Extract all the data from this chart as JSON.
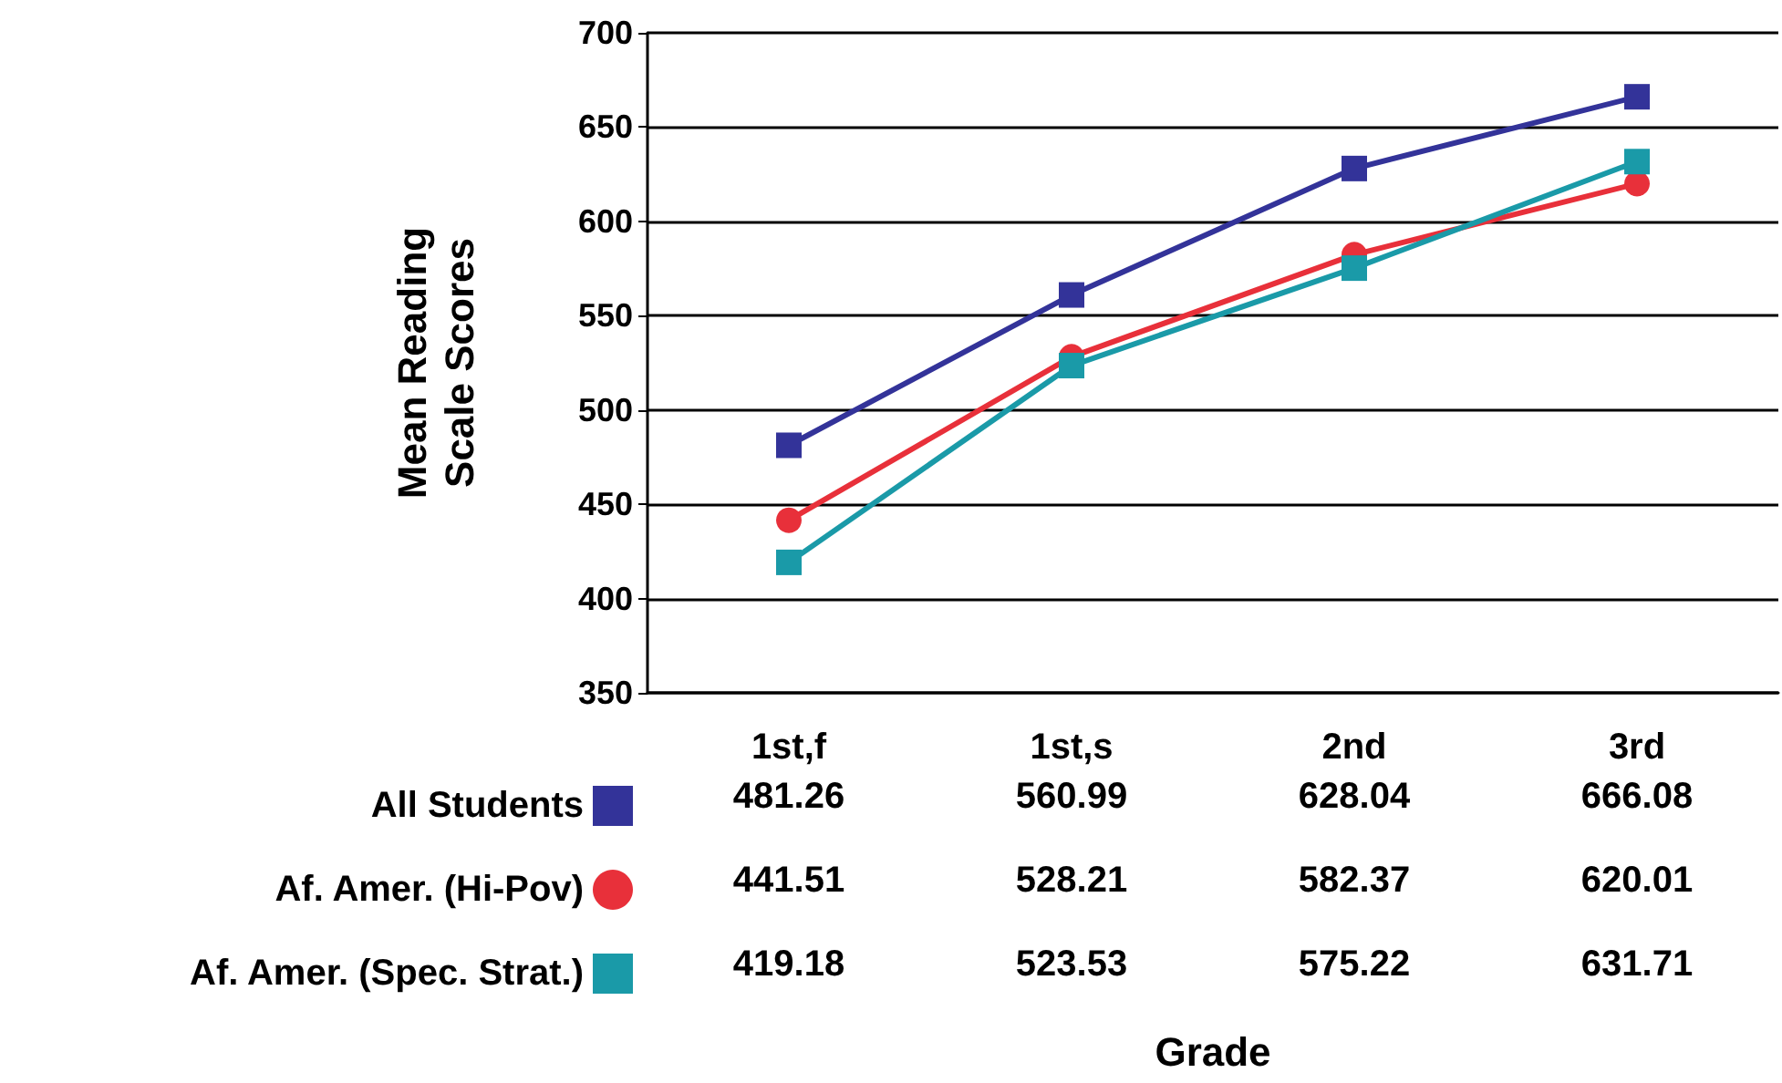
{
  "chart_data": {
    "type": "line",
    "annotations": [
      "Grade"
    ],
    "ylabel": "Mean Reading\nScale Scores",
    "categories": [
      "1st,f",
      "1st,s",
      "2nd",
      "3rd"
    ],
    "series": [
      {
        "name": "All Students",
        "color": "#333399",
        "marker": "square",
        "values": [
          481.26,
          560.99,
          628.04,
          666.08
        ]
      },
      {
        "name": "Af. Amer. (Hi-Pov)",
        "color": "#e8303a",
        "marker": "circle",
        "values": [
          441.51,
          528.21,
          582.37,
          620.01
        ]
      },
      {
        "name": "Af. Amer. (Spec. Strat.)",
        "color": "#1a9aa8",
        "marker": "square",
        "values": [
          419.18,
          523.53,
          575.22,
          631.71
        ]
      }
    ],
    "ylim": [
      350,
      700
    ],
    "yticks": [
      350,
      400,
      450,
      500,
      550,
      600,
      650,
      700
    ],
    "grid": "y",
    "legend": "bottom left",
    "data_labels": true
  }
}
